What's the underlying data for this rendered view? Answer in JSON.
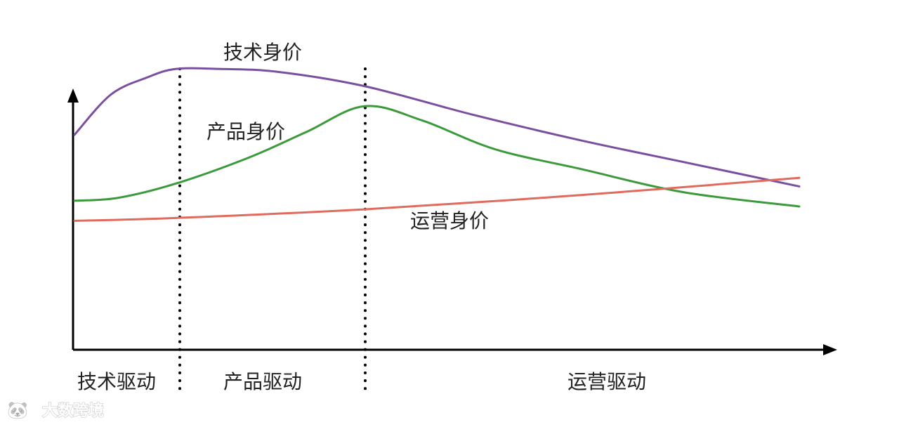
{
  "chart_data": {
    "type": "line",
    "axes": {
      "x_arrow": true,
      "y_arrow": true,
      "ticks": false,
      "grid": false
    },
    "series": [
      {
        "name": "技术身价",
        "color": "#7a4fa0",
        "points": [
          [
            0.0,
            0.75
          ],
          [
            0.05,
            0.89
          ],
          [
            0.1,
            0.95
          ],
          [
            0.14,
            0.98
          ],
          [
            0.2,
            0.98
          ],
          [
            0.28,
            0.97
          ],
          [
            0.4,
            0.92
          ],
          [
            0.55,
            0.82
          ],
          [
            0.7,
            0.73
          ],
          [
            0.85,
            0.65
          ],
          [
            1.0,
            0.57
          ]
        ]
      },
      {
        "name": "产品身价",
        "color": "#3c9a3c",
        "points": [
          [
            0.0,
            0.52
          ],
          [
            0.06,
            0.53
          ],
          [
            0.14,
            0.58
          ],
          [
            0.24,
            0.67
          ],
          [
            0.32,
            0.76
          ],
          [
            0.4,
            0.85
          ],
          [
            0.48,
            0.8
          ],
          [
            0.58,
            0.7
          ],
          [
            0.7,
            0.63
          ],
          [
            0.84,
            0.55
          ],
          [
            1.0,
            0.5
          ]
        ]
      },
      {
        "name": "运营身价",
        "color": "#e06a5e",
        "points": [
          [
            0.0,
            0.45
          ],
          [
            0.14,
            0.46
          ],
          [
            0.4,
            0.49
          ],
          [
            0.7,
            0.54
          ],
          [
            1.0,
            0.6
          ]
        ]
      }
    ],
    "phase_dividers": [
      0.14,
      0.4
    ],
    "phases": [
      "技术驱动",
      "产品驱动",
      "运营驱动"
    ]
  },
  "labels": {
    "tech": "技术身价",
    "product": "产品身价",
    "ops": "运营身价"
  },
  "phase_labels": {
    "tech": "技术驱动",
    "product": "产品驱动",
    "ops": "运营驱动"
  },
  "watermark": {
    "logo": "🐼",
    "text": "大数跨境"
  }
}
